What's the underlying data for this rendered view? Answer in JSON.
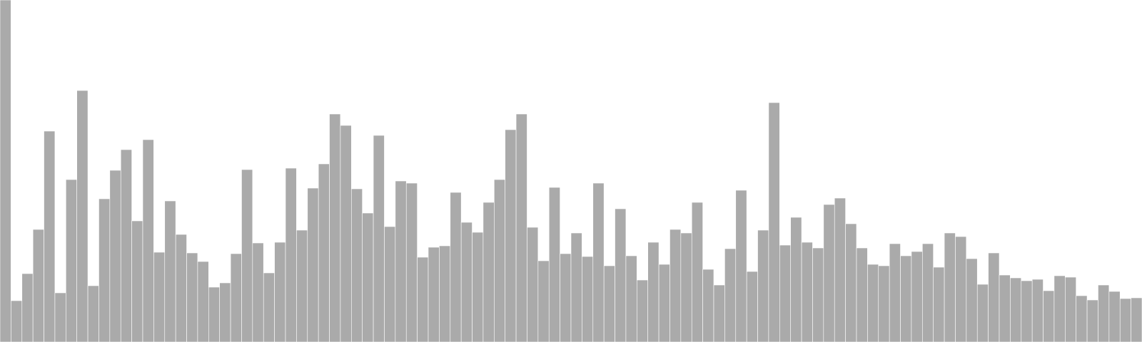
{
  "chart_data": {
    "type": "bar",
    "title": "",
    "xlabel": "",
    "ylabel": "",
    "grid": false,
    "legend": "none",
    "ylim": [
      0,
      480
    ],
    "bar_color": "#aaaaaa",
    "values": [
      480,
      58,
      96,
      158,
      296,
      69,
      228,
      353,
      79,
      201,
      241,
      270,
      170,
      284,
      126,
      198,
      151,
      125,
      113,
      77,
      83,
      124,
      242,
      139,
      97,
      140,
      244,
      157,
      216,
      250,
      320,
      304,
      215,
      181,
      290,
      162,
      226,
      223,
      119,
      133,
      135,
      210,
      168,
      154,
      196,
      228,
      298,
      320,
      161,
      114,
      217,
      124,
      153,
      120,
      223,
      107,
      187,
      121,
      87,
      140,
      109,
      158,
      153,
      196,
      102,
      80,
      131,
      213,
      99,
      157,
      336,
      136,
      175,
      140,
      132,
      193,
      202,
      166,
      132,
      109,
      107,
      138,
      121,
      127,
      138,
      105,
      153,
      148,
      117,
      81,
      125,
      94,
      90,
      86,
      88,
      72,
      93,
      91,
      65,
      59,
      80,
      71,
      61,
      62
    ]
  }
}
